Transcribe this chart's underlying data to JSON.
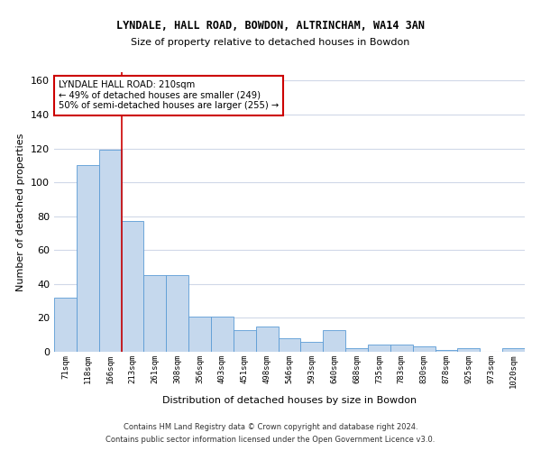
{
  "title1": "LYNDALE, HALL ROAD, BOWDON, ALTRINCHAM, WA14 3AN",
  "title2": "Size of property relative to detached houses in Bowdon",
  "xlabel": "Distribution of detached houses by size in Bowdon",
  "ylabel": "Number of detached properties",
  "categories": [
    "71sqm",
    "118sqm",
    "166sqm",
    "213sqm",
    "261sqm",
    "308sqm",
    "356sqm",
    "403sqm",
    "451sqm",
    "498sqm",
    "546sqm",
    "593sqm",
    "640sqm",
    "688sqm",
    "735sqm",
    "783sqm",
    "830sqm",
    "878sqm",
    "925sqm",
    "973sqm",
    "1020sqm"
  ],
  "values": [
    32,
    110,
    119,
    77,
    45,
    45,
    21,
    21,
    13,
    15,
    8,
    6,
    13,
    2,
    4,
    4,
    3,
    1,
    2,
    0,
    2
  ],
  "bar_color": "#c5d8ed",
  "bar_edge_color": "#5b9bd5",
  "grid_color": "#d0d8e8",
  "background_color": "#ffffff",
  "annotation_line1": "LYNDALE HALL ROAD: 210sqm",
  "annotation_line2": "← 49% of detached houses are smaller (249)",
  "annotation_line3": "50% of semi-detached houses are larger (255) →",
  "vline_color": "#cc0000",
  "box_color": "#cc0000",
  "ylim": [
    0,
    165
  ],
  "yticks": [
    0,
    20,
    40,
    60,
    80,
    100,
    120,
    140,
    160
  ],
  "footnote1": "Contains HM Land Registry data © Crown copyright and database right 2024.",
  "footnote2": "Contains public sector information licensed under the Open Government Licence v3.0."
}
